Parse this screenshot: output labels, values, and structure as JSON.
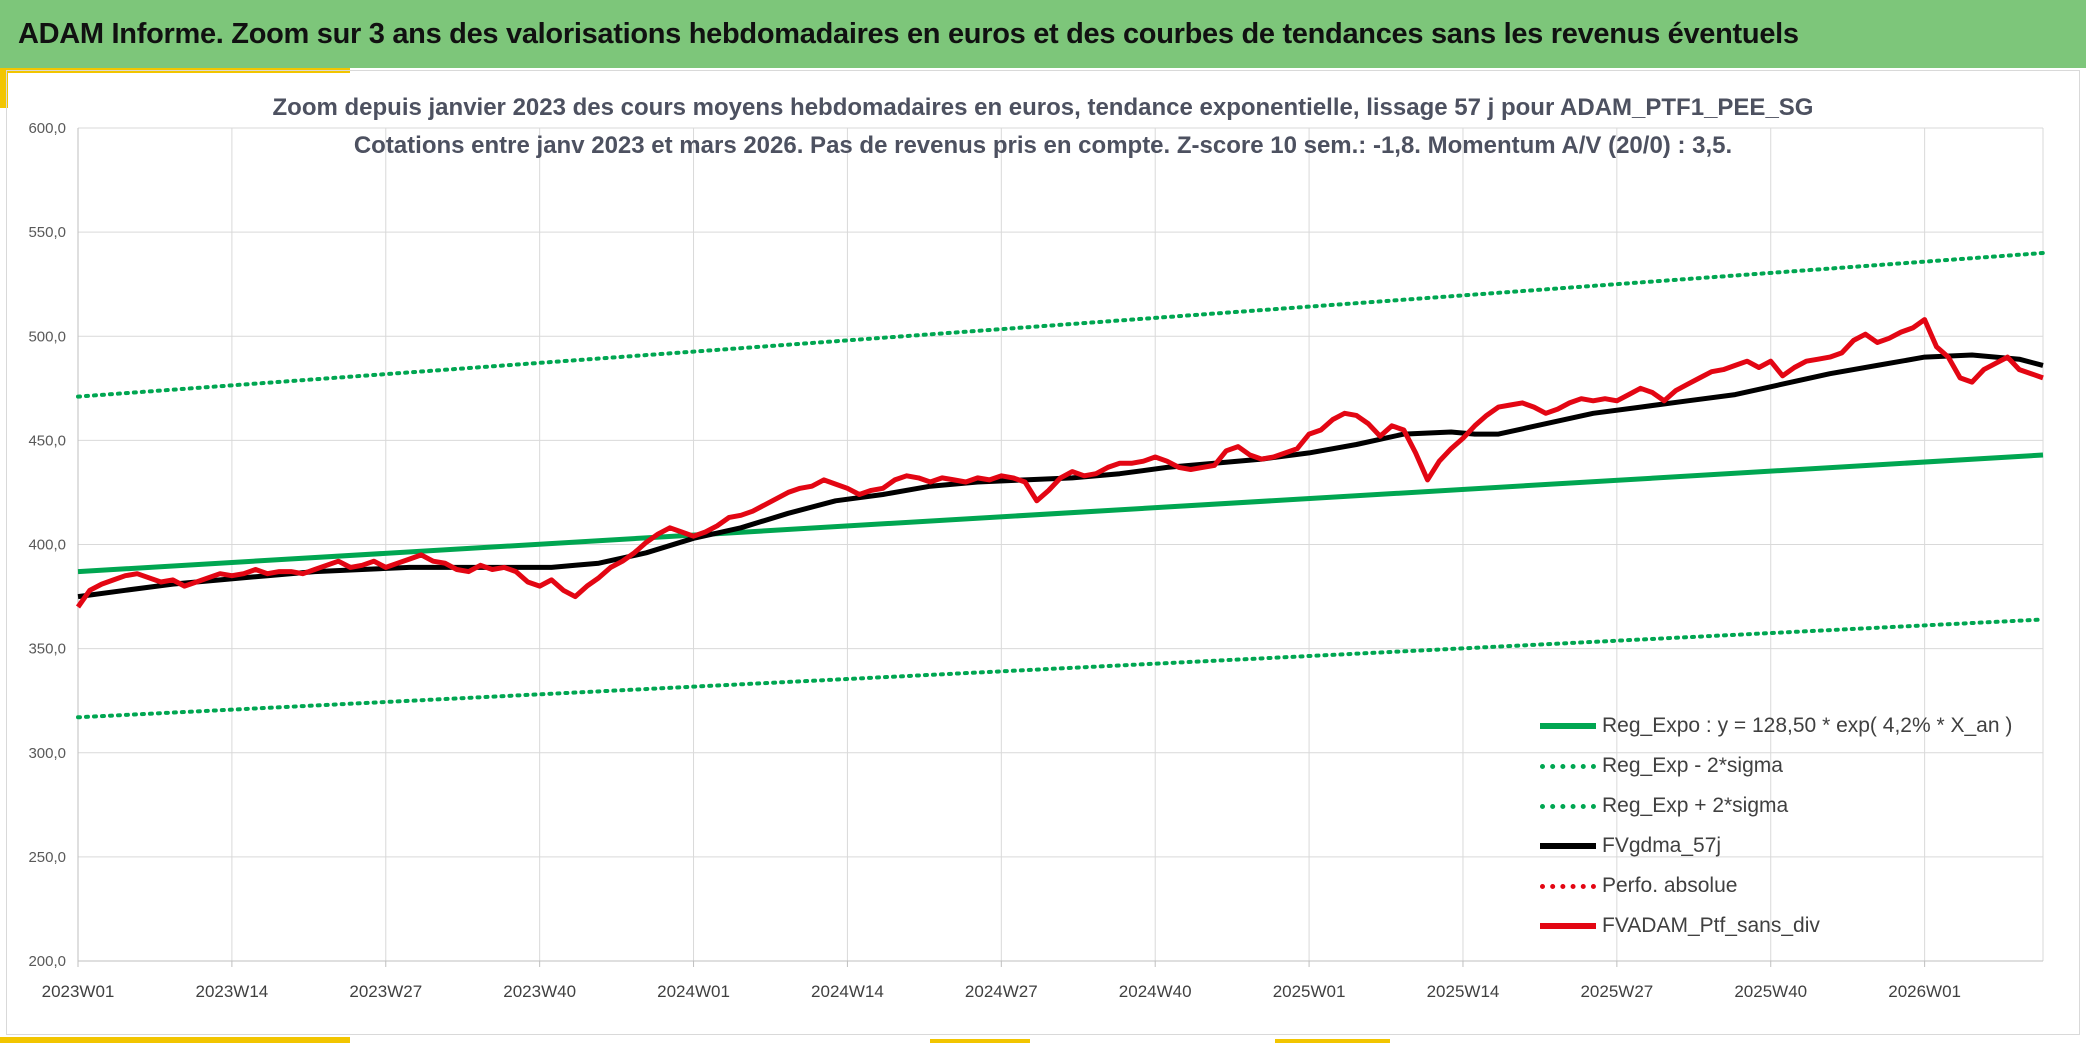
{
  "banner": {
    "title": "ADAM Informe. Zoom sur 3 ans des valorisations hebdomadaires en euros et des courbes de tendances sans les revenus éventuels"
  },
  "colors": {
    "banner_bg": "#7dc67a",
    "accent": "#f2c500",
    "regression": "#00a651",
    "smoothed": "#000000",
    "portfolio": "#e30613",
    "grid": "#d9d9d9"
  },
  "chart_data": {
    "type": "line",
    "title_line1": "Zoom depuis janvier 2023 des cours moyens hebdomadaires en euros, tendance exponentielle, lissage 57 j pour ADAM_PTF1_PEE_SG",
    "title_line2": "Cotations entre janv 2023 et mars 2026. Pas de revenus pris en compte. Z-score 10 sem.: -1,8. Momentum A/V (20/0) : 3,5.",
    "ylim": [
      200,
      600
    ],
    "y_ticks": [
      "200,0",
      "250,0",
      "300,0",
      "350,0",
      "400,0",
      "450,0",
      "500,0",
      "550,0",
      "600,0"
    ],
    "x_range_weeks": [
      0,
      166
    ],
    "x_ticks": [
      {
        "week": 0,
        "label": "2023W01"
      },
      {
        "week": 13,
        "label": "2023W14"
      },
      {
        "week": 26,
        "label": "2023W27"
      },
      {
        "week": 39,
        "label": "2023W40"
      },
      {
        "week": 52,
        "label": "2024W01"
      },
      {
        "week": 65,
        "label": "2024W14"
      },
      {
        "week": 78,
        "label": "2024W27"
      },
      {
        "week": 91,
        "label": "2024W40"
      },
      {
        "week": 104,
        "label": "2025W01"
      },
      {
        "week": 117,
        "label": "2025W14"
      },
      {
        "week": 130,
        "label": "2025W27"
      },
      {
        "week": 143,
        "label": "2025W40"
      },
      {
        "week": 156,
        "label": "2026W01"
      }
    ],
    "series": [
      {
        "name": "Reg_Expo : y = 128,50 * exp( 4,2% *  X_an )",
        "style": "solid-green",
        "x": [
          0,
          166
        ],
        "values": [
          387,
          443
        ]
      },
      {
        "name": "Reg_Exp - 2*sigma",
        "style": "dotted-green",
        "x": [
          0,
          166
        ],
        "values": [
          317,
          364
        ]
      },
      {
        "name": "Reg_Exp + 2*sigma",
        "style": "dotted-green",
        "x": [
          0,
          166
        ],
        "values": [
          471,
          540
        ]
      },
      {
        "name": "FVgdma_57j",
        "style": "solid-black",
        "x": [
          0,
          4,
          8,
          12,
          16,
          20,
          24,
          28,
          32,
          36,
          40,
          42,
          44,
          48,
          52,
          56,
          60,
          64,
          68,
          72,
          76,
          80,
          84,
          88,
          92,
          96,
          100,
          104,
          108,
          112,
          116,
          118,
          120,
          124,
          128,
          132,
          136,
          140,
          144,
          148,
          152,
          156,
          160,
          164,
          166
        ],
        "values": [
          375,
          378,
          381,
          383,
          385,
          387,
          388,
          389,
          389,
          389,
          389,
          390,
          391,
          396,
          403,
          408,
          415,
          421,
          424,
          428,
          430,
          431,
          432,
          434,
          437,
          439,
          441,
          444,
          448,
          453,
          454,
          453,
          453,
          458,
          463,
          466,
          469,
          472,
          477,
          482,
          486,
          490,
          491,
          489,
          486
        ]
      },
      {
        "name": "Perfo. absolue",
        "style": "dotted-red",
        "x": [],
        "values": []
      },
      {
        "name": "FVADAM_Ptf_sans_div",
        "style": "solid-red",
        "x": [
          0,
          1,
          2,
          3,
          4,
          5,
          6,
          7,
          8,
          9,
          10,
          11,
          12,
          13,
          14,
          15,
          16,
          17,
          18,
          19,
          20,
          21,
          22,
          23,
          24,
          25,
          26,
          27,
          28,
          29,
          30,
          31,
          32,
          33,
          34,
          35,
          36,
          37,
          38,
          39,
          40,
          41,
          42,
          43,
          44,
          45,
          46,
          47,
          48,
          49,
          50,
          51,
          52,
          53,
          54,
          55,
          56,
          57,
          58,
          59,
          60,
          61,
          62,
          63,
          64,
          65,
          66,
          67,
          68,
          69,
          70,
          71,
          72,
          73,
          74,
          75,
          76,
          77,
          78,
          79,
          80,
          81,
          82,
          83,
          84,
          85,
          86,
          87,
          88,
          89,
          90,
          91,
          92,
          93,
          94,
          95,
          96,
          97,
          98,
          99,
          100,
          101,
          102,
          103,
          104,
          105,
          106,
          107,
          108,
          109,
          110,
          111,
          112,
          113,
          114,
          115,
          116,
          117,
          118,
          119,
          120,
          121,
          122,
          123,
          124,
          125,
          126,
          127,
          128,
          129,
          130,
          131,
          132,
          133,
          134,
          135,
          136,
          137,
          138,
          139,
          140,
          141,
          142,
          143,
          144,
          145,
          146,
          147,
          148,
          149,
          150,
          151,
          152,
          153,
          154,
          155,
          156,
          157,
          158,
          159,
          160,
          161,
          162,
          163,
          164,
          165,
          166
        ],
        "values": [
          370,
          378,
          381,
          383,
          385,
          386,
          384,
          382,
          383,
          380,
          382,
          384,
          386,
          385,
          386,
          388,
          386,
          387,
          387,
          386,
          388,
          390,
          392,
          389,
          390,
          392,
          389,
          391,
          393,
          395,
          392,
          391,
          388,
          387,
          390,
          388,
          389,
          387,
          382,
          380,
          383,
          378,
          375,
          380,
          384,
          389,
          392,
          396,
          401,
          405,
          408,
          406,
          404,
          406,
          409,
          413,
          414,
          416,
          419,
          422,
          425,
          427,
          428,
          431,
          429,
          427,
          424,
          426,
          427,
          431,
          433,
          432,
          430,
          432,
          431,
          430,
          432,
          431,
          433,
          432,
          430,
          421,
          426,
          432,
          435,
          433,
          434,
          437,
          439,
          439,
          440,
          442,
          440,
          437,
          436,
          437,
          438,
          445,
          447,
          443,
          441,
          442,
          444,
          446,
          453,
          455,
          460,
          463,
          462,
          458,
          452,
          457,
          455,
          444,
          431,
          440,
          446,
          451,
          457,
          462,
          466,
          467,
          468,
          466,
          463,
          465,
          468,
          470,
          469,
          470,
          469,
          472,
          475,
          473,
          469,
          474,
          477,
          480,
          483,
          484,
          486,
          488,
          485,
          488,
          481,
          485,
          488,
          489,
          490,
          492,
          498,
          501,
          497,
          499,
          502,
          504,
          508,
          495,
          490,
          480,
          478,
          484,
          487,
          490,
          484,
          482,
          480
        ]
      }
    ],
    "legend": [
      {
        "label": "Reg_Expo : y = 128,50 * exp( 4,2% *  X_an )",
        "style": "solid-green"
      },
      {
        "label": "Reg_Exp - 2*sigma",
        "style": "dotted-green"
      },
      {
        "label": "Reg_Exp + 2*sigma",
        "style": "dotted-green"
      },
      {
        "label": "FVgdma_57j",
        "style": "solid-black"
      },
      {
        "label": "Perfo. absolue",
        "style": "dotted-red"
      },
      {
        "label": "FVADAM_Ptf_sans_div",
        "style": "solid-red"
      }
    ]
  }
}
